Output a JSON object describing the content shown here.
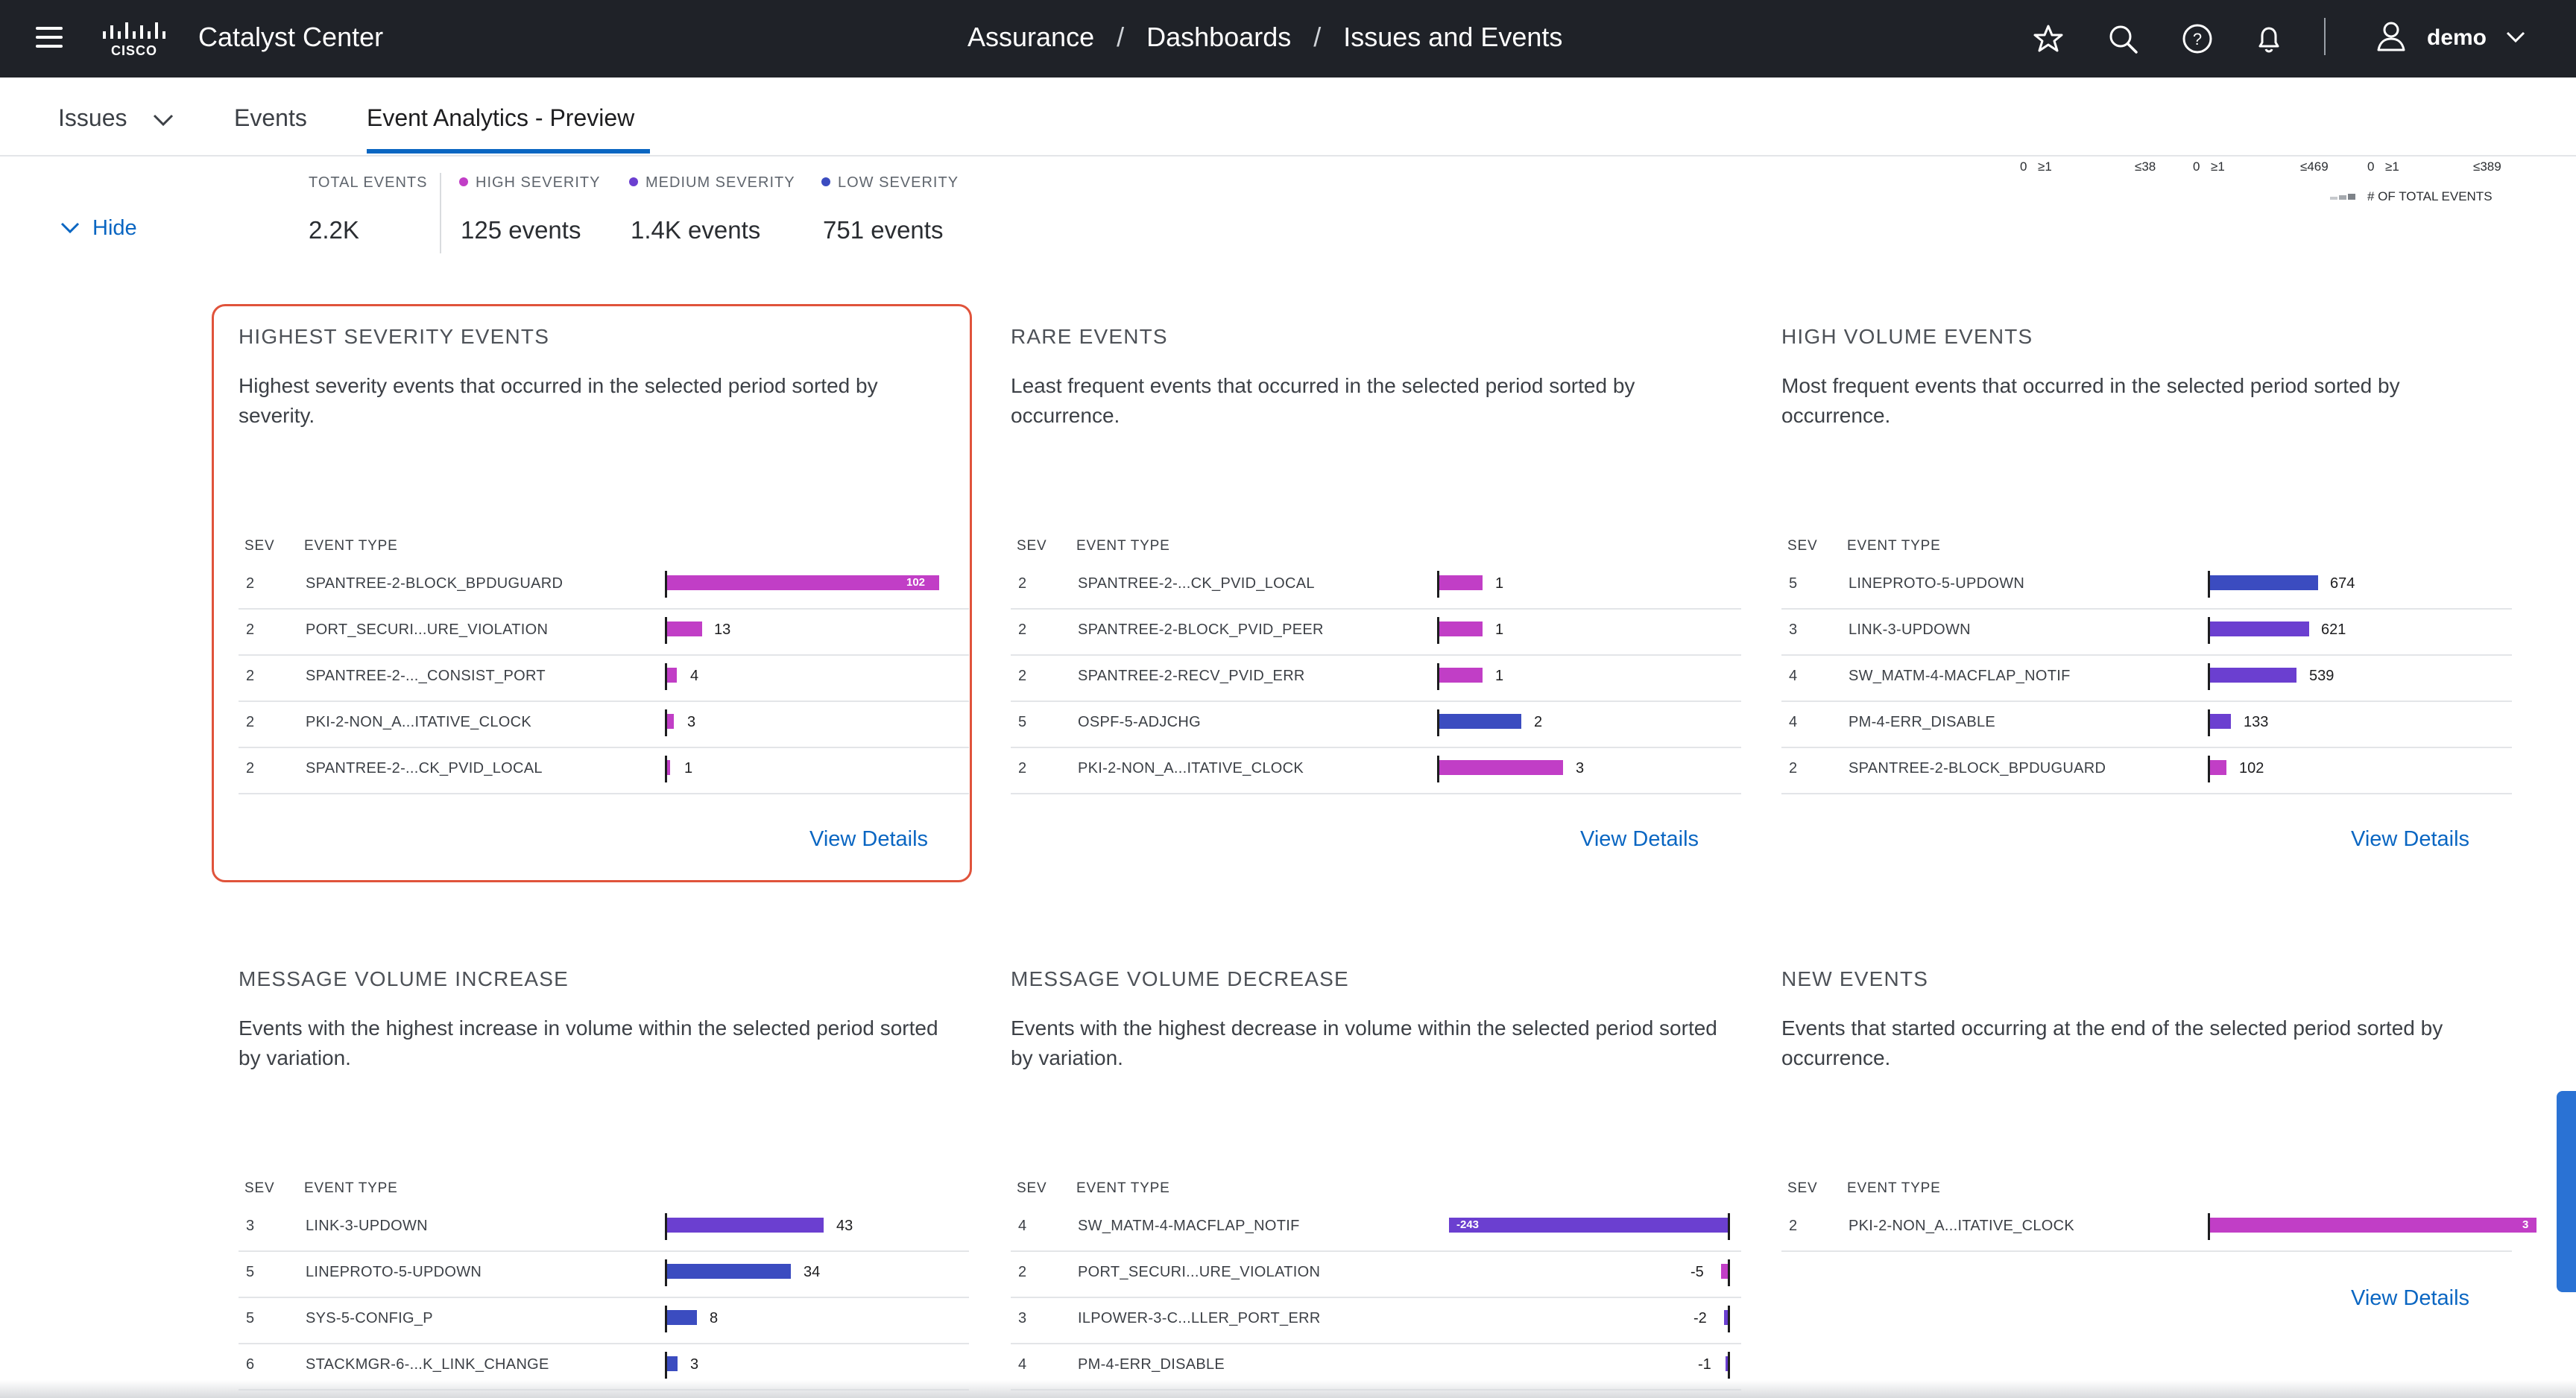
{
  "header": {
    "app_title": "Catalyst Center",
    "breadcrumb": [
      "Assurance",
      "/",
      "Dashboards",
      "/",
      "Issues and Events"
    ],
    "user": "demo"
  },
  "tabs": [
    {
      "label": "Issues"
    },
    {
      "label": "Events"
    },
    {
      "label": "Event Analytics - Preview"
    }
  ],
  "summary": {
    "hide_label": "Hide",
    "total": {
      "label": "TOTAL EVENTS",
      "value": "2.2K"
    },
    "high": {
      "label": "HIGH SEVERITY",
      "value": "125 events",
      "color": "#c13ec6"
    },
    "medium": {
      "label": "MEDIUM SEVERITY",
      "value": "1.4K events",
      "color": "#6b3fd0"
    },
    "low": {
      "label": "LOW SEVERITY",
      "value": "751 events",
      "color": "#3b4cc0"
    }
  },
  "legend": {
    "ticks": [
      "0",
      "≥1",
      "≤38",
      "0",
      "≥1",
      "≤469",
      "0",
      "≥1",
      "≤389"
    ],
    "note": "# OF TOTAL EVENTS"
  },
  "colors": {
    "high": "#c13ec6",
    "medium": "#6b3fd0",
    "low": "#3b4cc0",
    "link": "#0a66c2"
  },
  "cards": {
    "highest": {
      "title": "HIGHEST SEVERITY EVENTS",
      "desc": "Highest severity events that occurred in the selected period sorted by severity.",
      "sev_header": "SEV",
      "type_header": "EVENT TYPE",
      "view": "View Details",
      "rows": [
        {
          "sev": "2",
          "type": "SPANTREE-2-BLOCK_BPDUGUARD",
          "value": "102"
        },
        {
          "sev": "2",
          "type": "PORT_SECURI...URE_VIOLATION",
          "value": "13"
        },
        {
          "sev": "2",
          "type": "SPANTREE-2-..._CONSIST_PORT",
          "value": "4"
        },
        {
          "sev": "2",
          "type": "PKI-2-NON_A...ITATIVE_CLOCK",
          "value": "3"
        },
        {
          "sev": "2",
          "type": "SPANTREE-2-...CK_PVID_LOCAL",
          "value": "1"
        }
      ]
    },
    "rare": {
      "title": "RARE EVENTS",
      "desc": "Least frequent events that occurred in the selected period sorted by occurrence.",
      "sev_header": "SEV",
      "type_header": "EVENT TYPE",
      "view": "View Details",
      "rows": [
        {
          "sev": "2",
          "type": "SPANTREE-2-...CK_PVID_LOCAL",
          "value": "1"
        },
        {
          "sev": "2",
          "type": "SPANTREE-2-BLOCK_PVID_PEER",
          "value": "1"
        },
        {
          "sev": "2",
          "type": "SPANTREE-2-RECV_PVID_ERR",
          "value": "1"
        },
        {
          "sev": "5",
          "type": "OSPF-5-ADJCHG",
          "value": "2"
        },
        {
          "sev": "2",
          "type": "PKI-2-NON_A...ITATIVE_CLOCK",
          "value": "3"
        }
      ]
    },
    "high_volume": {
      "title": "HIGH VOLUME EVENTS",
      "desc": "Most frequent events that occurred in the selected period sorted by occurrence.",
      "sev_header": "SEV",
      "type_header": "EVENT TYPE",
      "view": "View Details",
      "rows": [
        {
          "sev": "5",
          "type": "LINEPROTO-5-UPDOWN",
          "value": "674"
        },
        {
          "sev": "3",
          "type": "LINK-3-UPDOWN",
          "value": "621"
        },
        {
          "sev": "4",
          "type": "SW_MATM-4-MACFLAP_NOTIF",
          "value": "539"
        },
        {
          "sev": "4",
          "type": "PM-4-ERR_DISABLE",
          "value": "133"
        },
        {
          "sev": "2",
          "type": "SPANTREE-2-BLOCK_BPDUGUARD",
          "value": "102"
        }
      ]
    },
    "increase": {
      "title": "MESSAGE VOLUME INCREASE",
      "desc": "Events with the highest increase in volume within the selected period sorted by variation.",
      "sev_header": "SEV",
      "type_header": "EVENT TYPE",
      "rows": [
        {
          "sev": "3",
          "type": "LINK-3-UPDOWN",
          "value": "43"
        },
        {
          "sev": "5",
          "type": "LINEPROTO-5-UPDOWN",
          "value": "34"
        },
        {
          "sev": "5",
          "type": "SYS-5-CONFIG_P",
          "value": "8"
        },
        {
          "sev": "6",
          "type": "STACKMGR-6-...K_LINK_CHANGE",
          "value": "3"
        }
      ]
    },
    "decrease": {
      "title": "MESSAGE VOLUME DECREASE",
      "desc": "Events with the highest decrease in volume within the selected period sorted by variation.",
      "sev_header": "SEV",
      "type_header": "EVENT TYPE",
      "rows": [
        {
          "sev": "4",
          "type": "SW_MATM-4-MACFLAP_NOTIF",
          "value": "-243"
        },
        {
          "sev": "2",
          "type": "PORT_SECURI...URE_VIOLATION",
          "value": "-5"
        },
        {
          "sev": "3",
          "type": "ILPOWER-3-C...LLER_PORT_ERR",
          "value": "-2"
        },
        {
          "sev": "4",
          "type": "PM-4-ERR_DISABLE",
          "value": "-1"
        }
      ]
    },
    "new_events": {
      "title": "NEW EVENTS",
      "desc": "Events that started occurring at the end of the selected period sorted by occurrence.",
      "sev_header": "SEV",
      "type_header": "EVENT TYPE",
      "view": "View Details",
      "rows": [
        {
          "sev": "2",
          "type": "PKI-2-NON_A...ITATIVE_CLOCK",
          "value": "3"
        }
      ]
    }
  }
}
